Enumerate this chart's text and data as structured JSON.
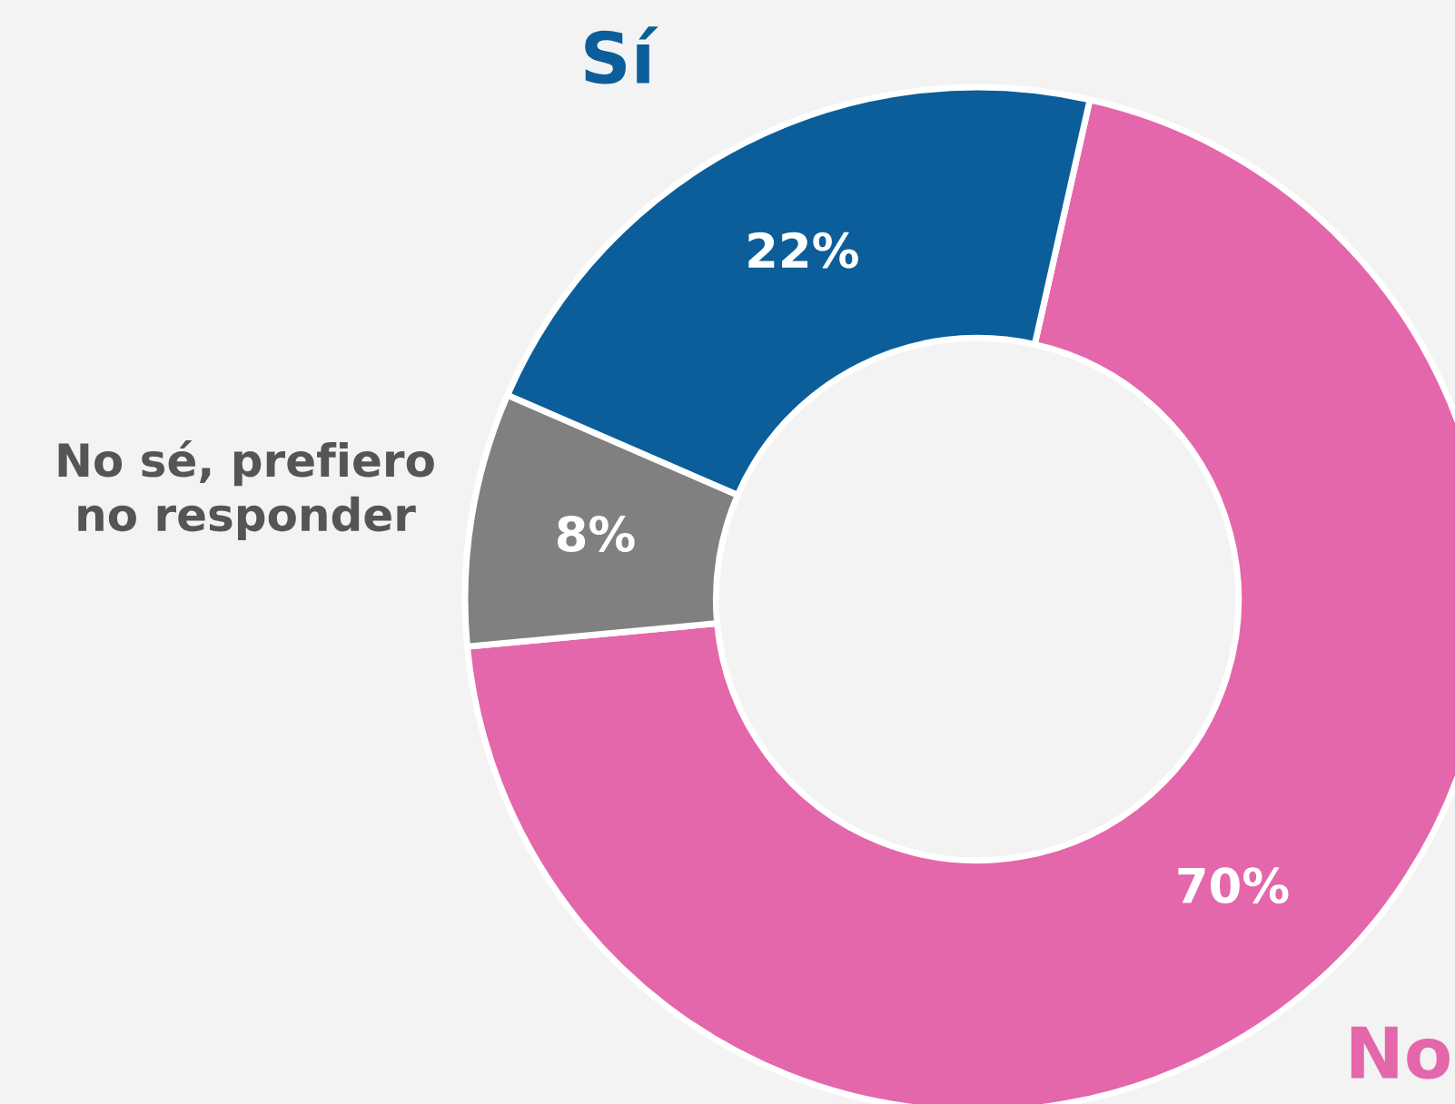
{
  "chart_data": {
    "type": "donut",
    "categories": [
      "No",
      "No sé, prefiero\nno responder",
      "Sí"
    ],
    "values": [
      70,
      8,
      22
    ],
    "colors": [
      "#e466ab",
      "#808080",
      "#0b5e99"
    ],
    "value_labels": [
      "70%",
      "8%",
      "22%"
    ],
    "legend": false
  }
}
